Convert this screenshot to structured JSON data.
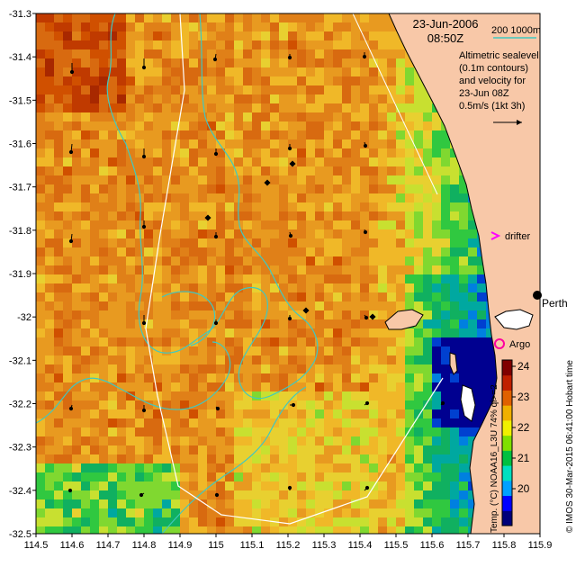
{
  "header": {
    "date": "23-Jun-2006",
    "time": "08:50Z",
    "isobath_label": "200  1000m",
    "legend_lines": [
      "Altimetric sealevel",
      "(0.1m contours)",
      "and velocity for",
      "23-Jun 08Z",
      "0.5m/s (1kt 3h)"
    ]
  },
  "markers": {
    "drifter_label": "drifter",
    "argo_label": "Argo",
    "city_label": "Perth"
  },
  "colorbar": {
    "ticks": [
      "24",
      "23",
      "22",
      "21",
      "20"
    ],
    "label": "Temp. (°C) NOAA16_L3U 74% ql>=2",
    "colors": [
      "#00007a",
      "#0000ff",
      "#00a0ff",
      "#00e0c0",
      "#00c040",
      "#80e000",
      "#f0f000",
      "#f0b000",
      "#e06000",
      "#c02000",
      "#800000"
    ]
  },
  "credit": "© IMOS 30-Mar-2015 06:41:00 Hobart time",
  "axes": {
    "x_ticks": [
      "114.5",
      "114.6",
      "114.7",
      "114.8",
      "114.9",
      "115",
      "115.1",
      "115.2",
      "115.3",
      "115.4",
      "115.5",
      "115.6",
      "115.7",
      "115.8",
      "115.9"
    ],
    "y_ticks": [
      "-31.3",
      "-31.4",
      "-31.5",
      "-31.6",
      "-31.7",
      "-31.8",
      "-31.9",
      "-32",
      "-32.1",
      "-32.2",
      "-32.3",
      "-32.4",
      "-32.5"
    ]
  },
  "colors": {
    "land": "#f8c8a8",
    "isobath": "#40c8c0",
    "track": "#ffffff",
    "argo": "#ff00a0",
    "drifter": "#ff00ff"
  }
}
